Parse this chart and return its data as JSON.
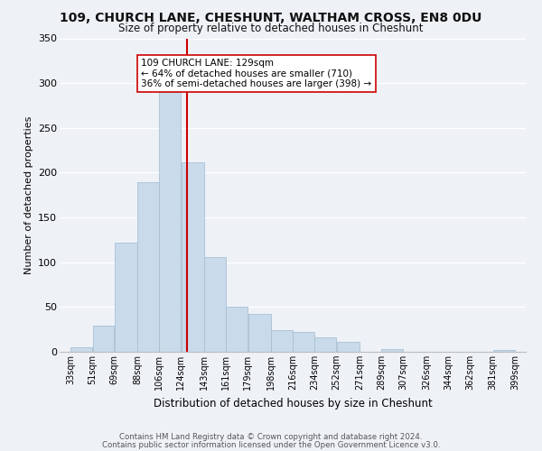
{
  "title_line1": "109, CHURCH LANE, CHESHUNT, WALTHAM CROSS, EN8 0DU",
  "title_line2": "Size of property relative to detached houses in Cheshunt",
  "xlabel": "Distribution of detached houses by size in Cheshunt",
  "ylabel": "Number of detached properties",
  "bar_color": "#c9daea",
  "bar_edge_color": "#a8c0d4",
  "marker_color": "#cc0000",
  "marker_value": 129,
  "bin_edges": [
    33,
    51,
    69,
    88,
    106,
    124,
    143,
    161,
    179,
    198,
    216,
    234,
    252,
    271,
    289,
    307,
    326,
    344,
    362,
    381,
    399
  ],
  "bin_labels": [
    "33sqm",
    "51sqm",
    "69sqm",
    "88sqm",
    "106sqm",
    "124sqm",
    "143sqm",
    "161sqm",
    "179sqm",
    "198sqm",
    "216sqm",
    "234sqm",
    "252sqm",
    "271sqm",
    "289sqm",
    "307sqm",
    "326sqm",
    "344sqm",
    "362sqm",
    "381sqm",
    "399sqm"
  ],
  "bar_heights": [
    5,
    29,
    122,
    189,
    294,
    212,
    106,
    50,
    42,
    24,
    22,
    16,
    11,
    0,
    3,
    0,
    0,
    0,
    0,
    2
  ],
  "ylim": [
    0,
    350
  ],
  "yticks": [
    0,
    50,
    100,
    150,
    200,
    250,
    300,
    350
  ],
  "annotation_line1": "109 CHURCH LANE: 129sqm",
  "annotation_line2": "← 64% of detached houses are smaller (710)",
  "annotation_line3": "36% of semi-detached houses are larger (398) →",
  "footnote1": "Contains HM Land Registry data © Crown copyright and database right 2024.",
  "footnote2": "Contains public sector information licensed under the Open Government Licence v3.0.",
  "background_color": "#eef2f7",
  "plot_background": "#eef2f7",
  "title_fontsize": 10,
  "subtitle_fontsize": 8.5,
  "ylabel_fontsize": 8,
  "xlabel_fontsize": 8.5,
  "tick_fontsize": 7,
  "annot_fontsize": 7.5,
  "footnote_fontsize": 6.2
}
